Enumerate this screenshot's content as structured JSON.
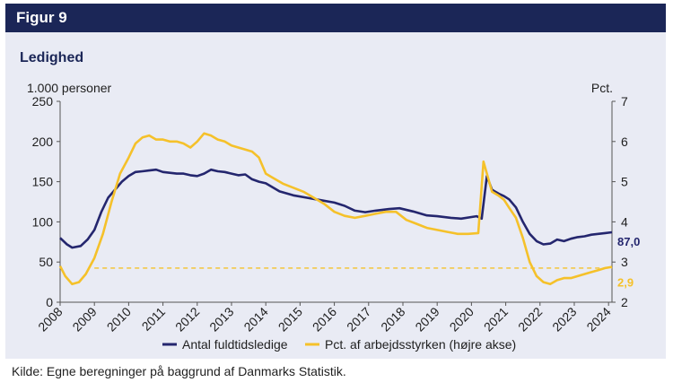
{
  "figure": {
    "label": "Figur 9",
    "title": "Ledighed",
    "source": "Kilde:  Egne beregninger på baggrund af Danmarks Statistik."
  },
  "colors": {
    "header_bg": "#1b2657",
    "panel_bg": "#e9ebf4",
    "series_navy": "#24266e",
    "series_yellow": "#f5c12a"
  },
  "chart_data": {
    "type": "line",
    "title": "Ledighed",
    "x_range": [
      2008,
      2024.1
    ],
    "x_ticks": [
      "2008",
      "2009",
      "2010",
      "2011",
      "2012",
      "2013",
      "2014",
      "2015",
      "2016",
      "2017",
      "2018",
      "2019",
      "2020",
      "2021",
      "2022",
      "2023",
      "2024"
    ],
    "left_axis": {
      "label": "1.000 personer",
      "range": [
        0,
        250
      ],
      "ticks": [
        "0",
        "50",
        "100",
        "150",
        "200",
        "250"
      ]
    },
    "right_axis": {
      "label": "Pct.",
      "range": [
        2,
        7
      ],
      "ticks": [
        "2",
        "3",
        "4",
        "5",
        "6",
        "7"
      ]
    },
    "grid": false,
    "legend_position": "bottom",
    "series": [
      {
        "name": "Antal fuldtidsledige",
        "axis": "left",
        "color": "#24266e",
        "end_label": "87,0",
        "x": [
          2008.0,
          2008.2,
          2008.35,
          2008.6,
          2008.8,
          2009.0,
          2009.2,
          2009.4,
          2009.6,
          2009.8,
          2010.0,
          2010.2,
          2010.4,
          2010.6,
          2010.8,
          2011.0,
          2011.2,
          2011.4,
          2011.6,
          2011.8,
          2012.0,
          2012.2,
          2012.4,
          2012.6,
          2012.8,
          2013.0,
          2013.2,
          2013.4,
          2013.6,
          2013.8,
          2014.0,
          2014.4,
          2014.8,
          2015.2,
          2015.6,
          2016.0,
          2016.3,
          2016.6,
          2016.9,
          2017.2,
          2017.6,
          2017.9,
          2018.3,
          2018.7,
          2019.0,
          2019.4,
          2019.7,
          2020.0,
          2020.15,
          2020.3,
          2020.45,
          2020.6,
          2020.8,
          2020.95,
          2021.1,
          2021.3,
          2021.5,
          2021.7,
          2021.9,
          2022.1,
          2022.3,
          2022.5,
          2022.7,
          2022.9,
          2023.1,
          2023.3,
          2023.5,
          2023.7,
          2023.9,
          2024.1
        ],
        "y": [
          80,
          72,
          68,
          70,
          78,
          90,
          112,
          130,
          140,
          150,
          157,
          162,
          163,
          164,
          165,
          162,
          161,
          160,
          160,
          158,
          157,
          160,
          165,
          163,
          162,
          160,
          158,
          159,
          153,
          150,
          148,
          138,
          133,
          130,
          127,
          124,
          120,
          114,
          112,
          114,
          116,
          117,
          113,
          108,
          107,
          105,
          104,
          106,
          107,
          104,
          157,
          140,
          135,
          132,
          128,
          118,
          100,
          85,
          76,
          72,
          73,
          78,
          76,
          79,
          81,
          82,
          84,
          85,
          86,
          87
        ]
      },
      {
        "name": "Pct. af arbejdsstyrken (højre akse)",
        "axis": "right",
        "color": "#f5c12a",
        "end_label": "2,9",
        "reference_level": 2.85,
        "x": [
          2008.0,
          2008.15,
          2008.35,
          2008.55,
          2008.75,
          2009.0,
          2009.25,
          2009.5,
          2009.75,
          2010.0,
          2010.2,
          2010.4,
          2010.6,
          2010.8,
          2011.0,
          2011.2,
          2011.4,
          2011.6,
          2011.8,
          2012.0,
          2012.2,
          2012.4,
          2012.6,
          2012.8,
          2013.0,
          2013.2,
          2013.4,
          2013.6,
          2013.8,
          2014.0,
          2014.2,
          2014.5,
          2014.8,
          2015.1,
          2015.4,
          2015.7,
          2016.0,
          2016.3,
          2016.6,
          2016.9,
          2017.2,
          2017.5,
          2017.8,
          2018.1,
          2018.4,
          2018.7,
          2019.0,
          2019.3,
          2019.6,
          2019.9,
          2020.2,
          2020.35,
          2020.45,
          2020.6,
          2020.8,
          2020.95,
          2021.1,
          2021.3,
          2021.5,
          2021.7,
          2021.9,
          2022.1,
          2022.3,
          2022.5,
          2022.7,
          2022.9,
          2023.1,
          2023.3,
          2023.5,
          2023.7,
          2023.9,
          2024.1
        ],
        "y": [
          2.9,
          2.65,
          2.45,
          2.5,
          2.7,
          3.1,
          3.7,
          4.5,
          5.2,
          5.6,
          5.95,
          6.1,
          6.15,
          6.05,
          6.05,
          6.0,
          6.0,
          5.95,
          5.85,
          6.0,
          6.2,
          6.15,
          6.05,
          6.0,
          5.9,
          5.85,
          5.8,
          5.75,
          5.6,
          5.2,
          5.1,
          4.95,
          4.85,
          4.75,
          4.6,
          4.45,
          4.25,
          4.15,
          4.1,
          4.15,
          4.2,
          4.25,
          4.25,
          4.05,
          3.95,
          3.85,
          3.8,
          3.75,
          3.7,
          3.7,
          3.72,
          5.5,
          5.2,
          4.75,
          4.65,
          4.55,
          4.35,
          4.1,
          3.6,
          3.0,
          2.65,
          2.5,
          2.45,
          2.55,
          2.6,
          2.6,
          2.65,
          2.7,
          2.75,
          2.8,
          2.85,
          2.88
        ]
      }
    ]
  }
}
